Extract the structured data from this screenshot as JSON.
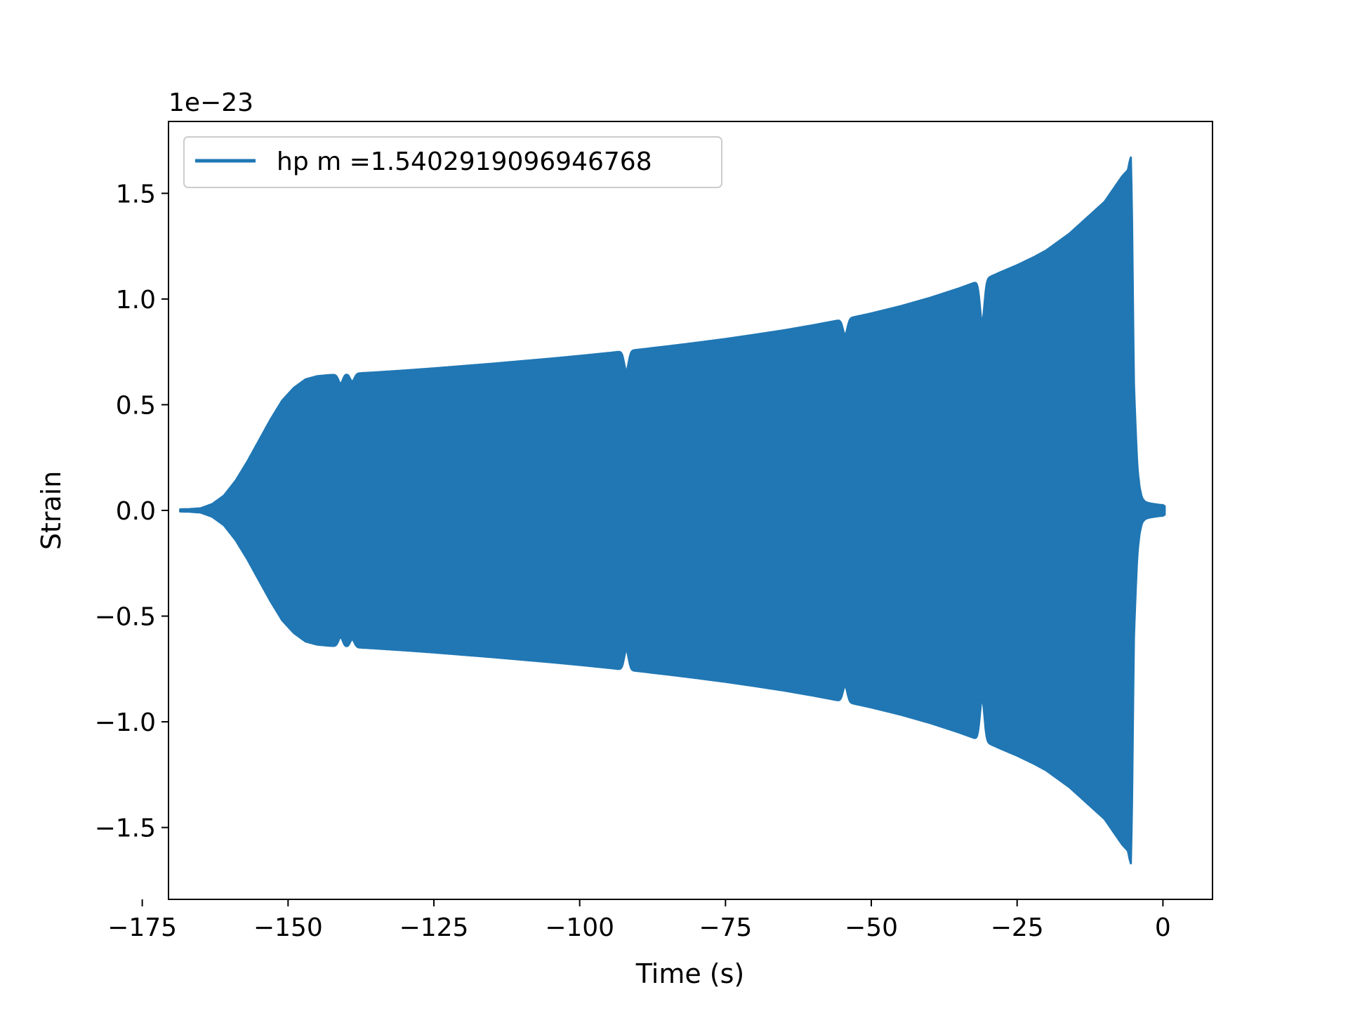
{
  "chart_data": {
    "type": "area",
    "title": "",
    "xlabel": "Time (s)",
    "ylabel": "Strain",
    "y_offset_label": "1e−23",
    "y_scale": 1e-23,
    "xlim": [
      -170.5,
      8.5
    ],
    "ylim": [
      -1.84,
      1.84
    ],
    "xticks": [
      -175,
      -150,
      -125,
      -100,
      -75,
      -50,
      -25,
      0
    ],
    "xtick_labels": [
      "−175",
      "−150",
      "−125",
      "−100",
      "−75",
      "−50",
      "−25",
      "0"
    ],
    "yticks": [
      1.5,
      1.0,
      0.5,
      0.0,
      -0.5,
      -1.0,
      -1.5
    ],
    "ytick_labels": [
      "1.5",
      "1.0",
      "0.5",
      "0.0",
      "−0.5",
      "−1.0",
      "−1.5"
    ],
    "grid": false,
    "legend_position": "upper-left",
    "series": [
      {
        "name": "hp m =1.5402919096946768",
        "color": "#2077b4",
        "kind": "oscillating-envelope",
        "envelope_t": [
          -168.5,
          -167,
          -165,
          -163,
          -161,
          -159,
          -157,
          -155,
          -153,
          -151,
          -149,
          -147,
          -145,
          -143,
          -140,
          -135,
          -130,
          -125,
          -120,
          -115,
          -110,
          -105,
          -100,
          -95,
          -90,
          -85,
          -80,
          -75,
          -70,
          -65,
          -60,
          -55,
          -50,
          -45,
          -40,
          -35,
          -32,
          -30,
          -28,
          -25,
          -22,
          -20,
          -18,
          -16,
          -14,
          -12,
          -10,
          -9,
          -8,
          -7,
          -6,
          -5.7,
          -5.5,
          -5.3,
          -5.0,
          -4.7,
          -4.5,
          -4.3,
          -4.0,
          -3.7,
          -3.5,
          -3.2,
          -3.0,
          -2.5,
          -2.0,
          -1.5,
          -1.0,
          -0.5,
          0.0,
          0.3
        ],
        "envelope_amplitude": [
          0.005,
          0.006,
          0.01,
          0.03,
          0.07,
          0.14,
          0.23,
          0.33,
          0.43,
          0.52,
          0.58,
          0.62,
          0.635,
          0.64,
          0.645,
          0.653,
          0.662,
          0.672,
          0.683,
          0.694,
          0.706,
          0.718,
          0.731,
          0.745,
          0.76,
          0.776,
          0.793,
          0.811,
          0.831,
          0.852,
          0.876,
          0.902,
          0.932,
          0.966,
          1.005,
          1.05,
          1.08,
          1.1,
          1.125,
          1.16,
          1.2,
          1.23,
          1.27,
          1.31,
          1.36,
          1.41,
          1.46,
          1.5,
          1.54,
          1.58,
          1.61,
          1.65,
          1.67,
          1.4,
          0.62,
          0.4,
          0.27,
          0.18,
          0.11,
          0.07,
          0.055,
          0.045,
          0.04,
          0.035,
          0.032,
          0.03,
          0.028,
          0.026,
          0.025,
          0.02
        ],
        "dips": [
          {
            "t": -141,
            "amplitude": 0.6
          },
          {
            "t": -139,
            "amplitude": 0.61
          },
          {
            "t": -92,
            "amplitude": 0.66
          },
          {
            "t": -54.5,
            "amplitude": 0.83
          },
          {
            "t": -31,
            "amplitude": 0.89
          }
        ]
      }
    ]
  }
}
